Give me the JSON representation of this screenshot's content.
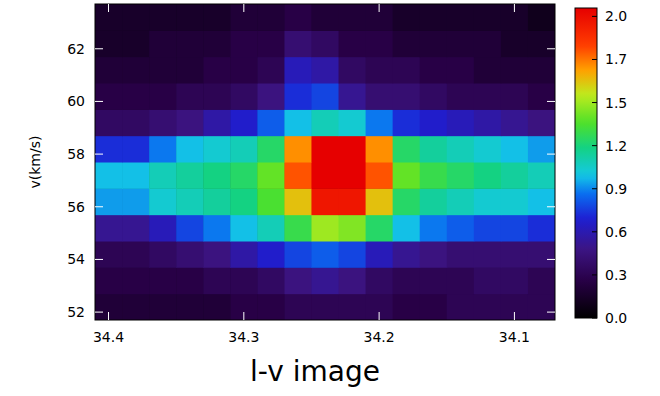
{
  "chart_data": {
    "type": "heatmap",
    "title": "l-v image",
    "y_label": "v(km/s)",
    "xlim": [
      34.41,
      34.07
    ],
    "ylim": [
      51.7,
      63.7
    ],
    "xticks": [
      34.4,
      34.3,
      34.2,
      34.1
    ],
    "yticks": [
      52,
      54,
      56,
      58,
      60,
      62
    ],
    "x": [
      34.4,
      34.38,
      34.36,
      34.34,
      34.32,
      34.3,
      34.28,
      34.26,
      34.24,
      34.22,
      34.2,
      34.18,
      34.16,
      34.14,
      34.12,
      34.1,
      34.08
    ],
    "y": [
      52.2,
      53.2,
      54.2,
      55.2,
      56.2,
      57.2,
      58.2,
      59.2,
      60.2,
      61.2,
      62.2,
      63.2
    ],
    "z": [
      [
        0.2,
        0.2,
        0.2,
        0.2,
        0.2,
        0.25,
        0.25,
        0.3,
        0.3,
        0.3,
        0.3,
        0.25,
        0.25,
        0.3,
        0.3,
        0.3,
        0.3
      ],
      [
        0.25,
        0.25,
        0.25,
        0.25,
        0.3,
        0.3,
        0.35,
        0.45,
        0.5,
        0.45,
        0.35,
        0.3,
        0.3,
        0.3,
        0.35,
        0.35,
        0.3
      ],
      [
        0.3,
        0.3,
        0.35,
        0.4,
        0.45,
        0.55,
        0.65,
        0.75,
        0.8,
        0.75,
        0.6,
        0.5,
        0.45,
        0.4,
        0.4,
        0.4,
        0.4
      ],
      [
        0.5,
        0.5,
        0.6,
        0.75,
        0.85,
        0.95,
        1.05,
        1.25,
        1.45,
        1.4,
        1.2,
        0.95,
        0.85,
        0.8,
        0.75,
        0.75,
        0.7
      ],
      [
        0.9,
        0.9,
        1.0,
        1.05,
        1.1,
        1.15,
        1.3,
        1.6,
        2.0,
        2.0,
        1.6,
        1.2,
        1.1,
        1.05,
        1.0,
        1.0,
        0.95
      ],
      [
        0.95,
        0.95,
        1.05,
        1.1,
        1.15,
        1.2,
        1.35,
        1.8,
        2.2,
        2.2,
        1.8,
        1.35,
        1.25,
        1.2,
        1.15,
        1.1,
        1.05
      ],
      [
        0.7,
        0.7,
        0.85,
        0.95,
        1.0,
        1.05,
        1.2,
        1.7,
        2.1,
        2.1,
        1.7,
        1.2,
        1.1,
        1.05,
        1.0,
        0.95,
        0.9
      ],
      [
        0.35,
        0.35,
        0.4,
        0.45,
        0.55,
        0.65,
        0.8,
        0.95,
        1.05,
        1.0,
        0.85,
        0.7,
        0.65,
        0.6,
        0.55,
        0.5,
        0.45
      ],
      [
        0.25,
        0.25,
        0.25,
        0.3,
        0.3,
        0.35,
        0.45,
        0.7,
        0.75,
        0.5,
        0.4,
        0.4,
        0.35,
        0.3,
        0.3,
        0.3,
        0.25
      ],
      [
        0.2,
        0.2,
        0.2,
        0.2,
        0.25,
        0.25,
        0.3,
        0.6,
        0.55,
        0.35,
        0.3,
        0.3,
        0.25,
        0.25,
        0.2,
        0.2,
        0.2
      ],
      [
        0.15,
        0.15,
        0.2,
        0.2,
        0.2,
        0.25,
        0.25,
        0.4,
        0.35,
        0.25,
        0.25,
        0.2,
        0.2,
        0.2,
        0.2,
        0.15,
        0.15
      ],
      [
        0.15,
        0.15,
        0.15,
        0.15,
        0.15,
        0.2,
        0.2,
        0.25,
        0.2,
        0.2,
        0.2,
        0.15,
        0.15,
        0.15,
        0.15,
        0.15,
        0.1
      ]
    ],
    "colorbar": {
      "range": [
        0,
        2.09
      ],
      "ticks": [
        {
          "value": 0,
          "label": "0.0"
        },
        {
          "value": 0.2905,
          "label": "0.3"
        },
        {
          "value": 0.581,
          "label": "0.6"
        },
        {
          "value": 0.8715,
          "label": "0.9"
        },
        {
          "value": 1.162,
          "label": "1.2"
        },
        {
          "value": 1.4525,
          "label": "1.5"
        },
        {
          "value": 1.743,
          "label": "1.7"
        },
        {
          "value": 2.0335,
          "label": "2.0"
        }
      ]
    }
  }
}
